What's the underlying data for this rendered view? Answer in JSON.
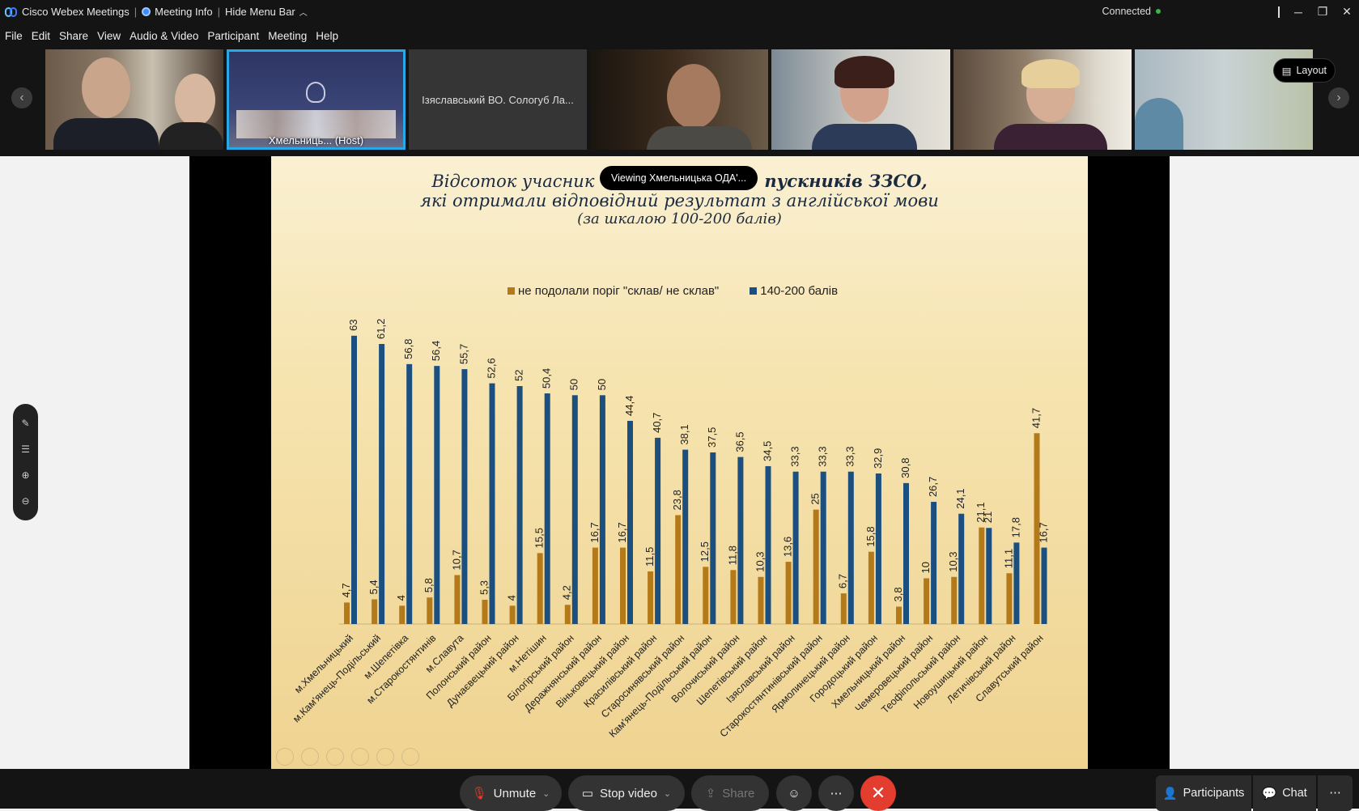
{
  "titlebar": {
    "app": "Cisco Webex Meetings",
    "meeting_info": "Meeting Info",
    "hide_menu": "Hide Menu Bar",
    "status": "Connected"
  },
  "menu": [
    "File",
    "Edit",
    "Share",
    "View",
    "Audio & Video",
    "Participant",
    "Meeting",
    "Help"
  ],
  "participants": {
    "host_name": "Хмельниць... (Host)",
    "named_tile": "Ізяславський ВО. Сологуб Ла..."
  },
  "layout_label": "Layout",
  "viewing_label": "Viewing Хмельницька ОДА'...",
  "slide": {
    "title_line1": "Відсоток учасник",
    "title_line1b": "пускників ЗЗСО,",
    "title_line2": "які отримали відповідний результат з англійської мови",
    "title_line3": "(за шкалою 100-200 балів)"
  },
  "chart_data": {
    "type": "bar",
    "categories": [
      "м.Хмельницький",
      "м.Кам'янець-Подільський",
      "м.Шепетівка",
      "м.Старокостянтинів",
      "м.Славута",
      "Полонський район",
      "Дунаєвецький район",
      "м.Нетішин",
      "Білогірський район",
      "Деражнянський район",
      "Віньковецький район",
      "Красилівський район",
      "Старосинявський район",
      "Кам'янець-Подільський район",
      "Волочиський район",
      "Шепетівський район",
      "Ізяславський район",
      "Старокостянтинівський район",
      "Ярмолинецький район",
      "Городоцький район",
      "Хмельницький район",
      "Чемеровецький район",
      "Теофіпольський район",
      "Новоушицький район",
      "Летичівський район",
      "Славутський район"
    ],
    "series": [
      {
        "name": "не подолали поріг \"склав/ не склав\"",
        "color": "#b47a1a",
        "values": [
          4.7,
          5.4,
          4,
          5.8,
          10.7,
          5.3,
          4,
          15.5,
          4.2,
          16.7,
          16.7,
          11.5,
          23.8,
          12.5,
          11.8,
          10.3,
          13.6,
          25,
          6.7,
          15.8,
          3.8,
          10,
          10.3,
          21.1,
          11.1,
          41.7
        ]
      },
      {
        "name": "140-200 балів",
        "color": "#1a4f80",
        "values": [
          63,
          61.2,
          56.8,
          56.4,
          55.7,
          52.6,
          52,
          50.4,
          50,
          50,
          44.4,
          40.7,
          38.1,
          37.5,
          36.5,
          34.5,
          33.3,
          33.3,
          33.3,
          32.9,
          30.8,
          26.7,
          24.1,
          21,
          17.8,
          16.7
        ]
      }
    ],
    "ylim": [
      0,
      70
    ]
  },
  "bottom": {
    "unmute": "Unmute",
    "stop_video": "Stop video",
    "share": "Share",
    "participants": "Participants",
    "chat": "Chat"
  }
}
